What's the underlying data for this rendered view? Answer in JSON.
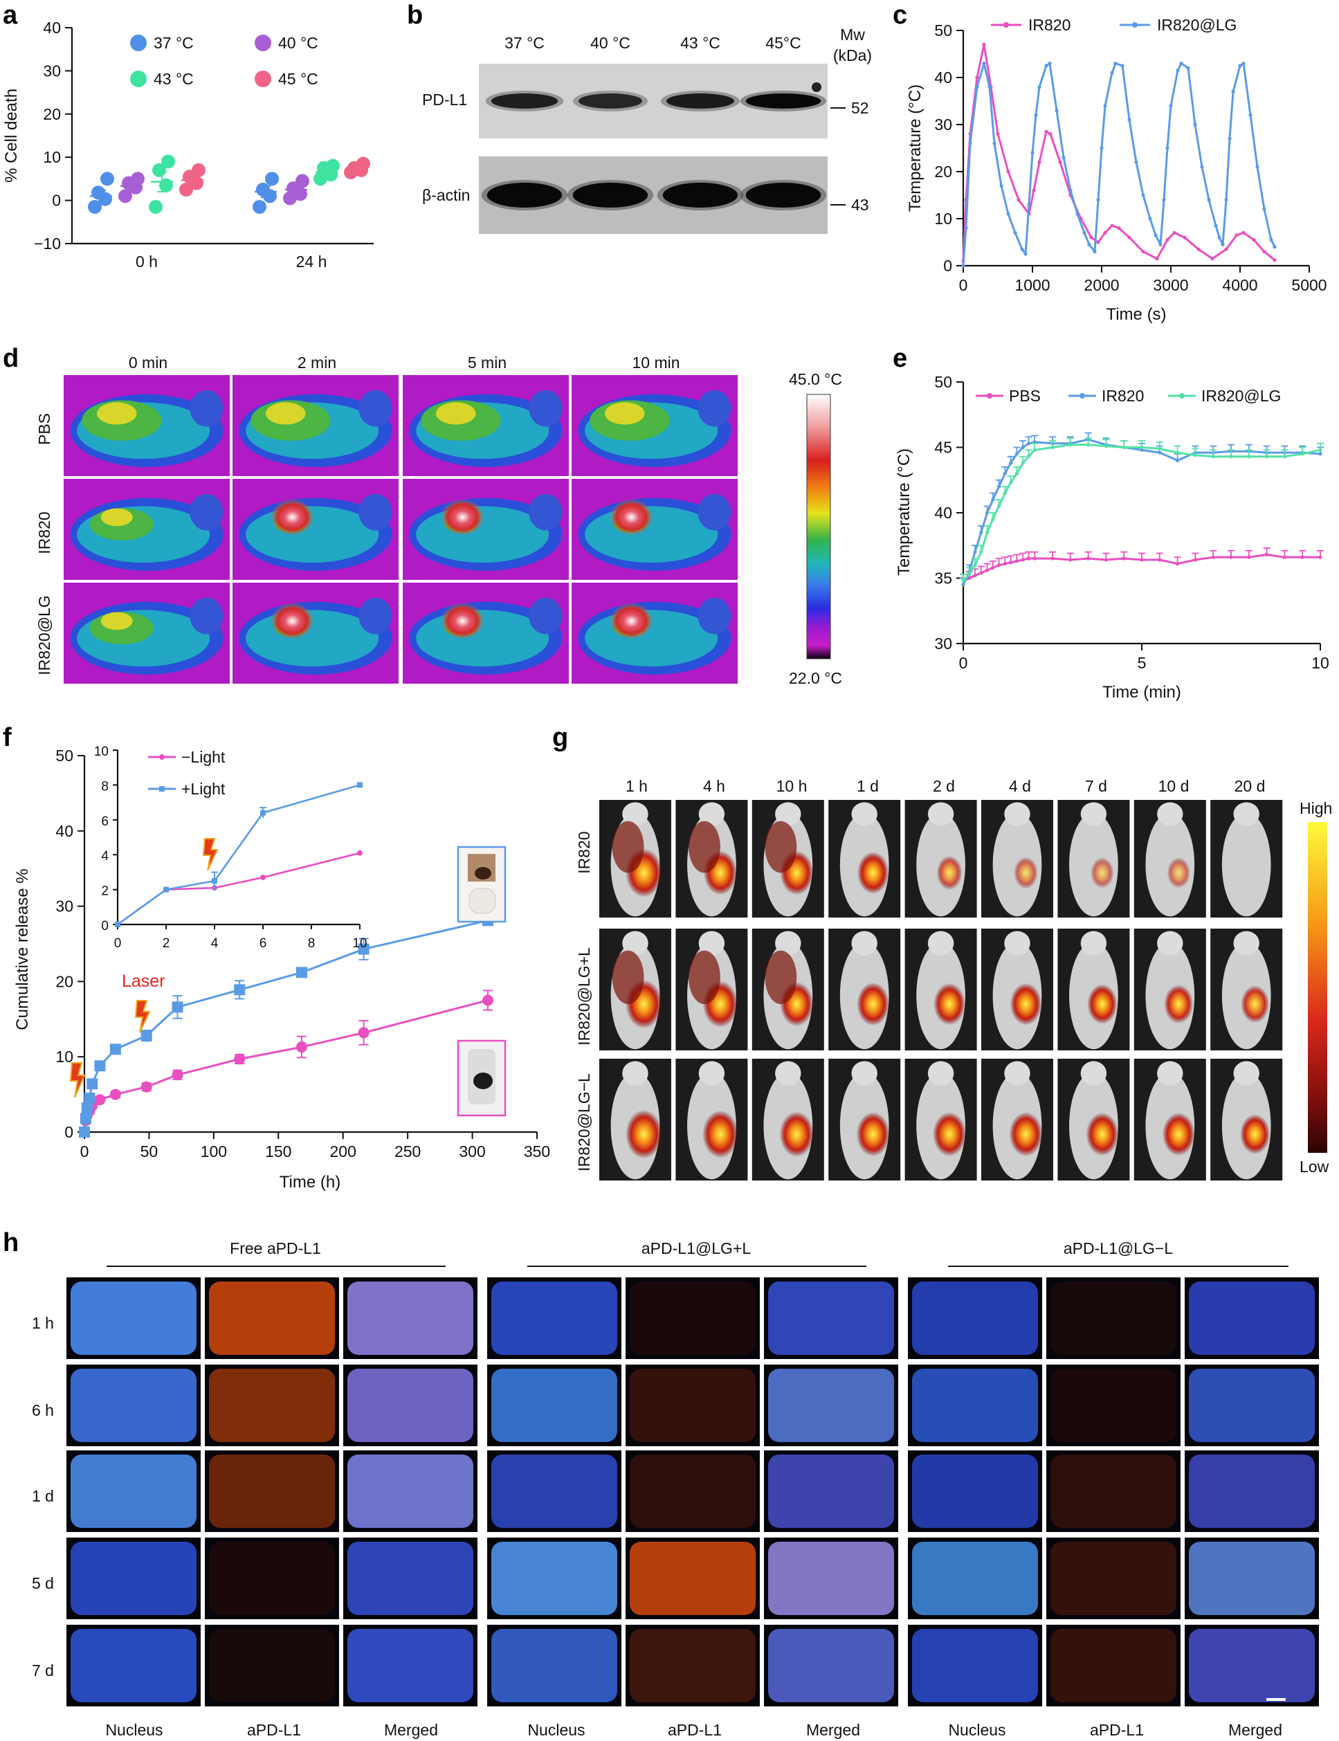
{
  "panel_labels": {
    "a": "a",
    "b": "b",
    "c": "c",
    "d": "d",
    "e": "e",
    "f": "f",
    "g": "g",
    "h": "h"
  },
  "colors": {
    "pink": "#e94fc0",
    "blue": "#5a9be6",
    "green": "#52e2a6",
    "c37": "#4f8fe8",
    "c40": "#a85fd6",
    "c43": "#3ee3a0",
    "c45": "#ef6486"
  },
  "chart_data": [
    {
      "id": "a",
      "type": "scatter",
      "title": "",
      "ylabel": "% Cell death",
      "xlabel": "",
      "ylim": [
        -10,
        40
      ],
      "yticks": [
        "−10",
        "0",
        "10",
        "20",
        "30",
        "40"
      ],
      "categories": [
        "0 h",
        "24 h"
      ],
      "legend": [
        "37 °C",
        "40 °C",
        "43 °C",
        "45 °C"
      ],
      "series": [
        {
          "name": "37 °C",
          "color": "#4f8fe8",
          "groups": [
            {
              "cat": 0,
              "points": [
                -1.5,
                0.3,
                1.8,
                5.0
              ],
              "mean": 1.0,
              "sem": 1.4
            },
            {
              "cat": 1,
              "points": [
                -1.5,
                1.0,
                2.5,
                5.0
              ],
              "mean": 2.0,
              "sem": 1.3
            }
          ]
        },
        {
          "name": "40 °C",
          "color": "#a85fd6",
          "groups": [
            {
              "cat": 0,
              "points": [
                1.0,
                3.0,
                4.0,
                5.0
              ],
              "mean": 3.3,
              "sem": 0.9
            },
            {
              "cat": 1,
              "points": [
                0.5,
                1.5,
                2.8,
                4.5
              ],
              "mean": 2.5,
              "sem": 0.9
            }
          ]
        },
        {
          "name": "43 °C",
          "color": "#3ee3a0",
          "groups": [
            {
              "cat": 0,
              "points": [
                -1.5,
                3.5,
                7.0,
                9.0
              ],
              "mean": 4.3,
              "sem": 2.3
            },
            {
              "cat": 1,
              "points": [
                5.0,
                6.0,
                7.5,
                8.0
              ],
              "mean": 6.5,
              "sem": 0.8
            }
          ]
        },
        {
          "name": "45 °C",
          "color": "#ef6486",
          "groups": [
            {
              "cat": 0,
              "points": [
                2.5,
                4.0,
                5.5,
                7.0
              ],
              "mean": 4.7,
              "sem": 1.0
            },
            {
              "cat": 1,
              "points": [
                6.5,
                7.0,
                7.5,
                8.5
              ],
              "mean": 7.3,
              "sem": 0.6
            }
          ]
        }
      ]
    },
    {
      "id": "c",
      "type": "line",
      "title": "",
      "xlabel": "Time (s)",
      "ylabel": "Temperature (°C)",
      "xlim": [
        0,
        5000
      ],
      "ylim": [
        0,
        50
      ],
      "xticks": [
        "0",
        "1000",
        "2000",
        "3000",
        "4000",
        "5000"
      ],
      "yticks": [
        "0",
        "10",
        "20",
        "30",
        "40",
        "50"
      ],
      "series": [
        {
          "name": "IR820",
          "color": "#e94fc0",
          "x": [
            0,
            40,
            100,
            200,
            300,
            400,
            500,
            650,
            800,
            950,
            1020,
            1100,
            1200,
            1260,
            1400,
            1550,
            1700,
            1850,
            1950,
            2050,
            2150,
            2250,
            2400,
            2600,
            2800,
            2950,
            3050,
            3200,
            3400,
            3600,
            3800,
            3950,
            4050,
            4200,
            4350,
            4500
          ],
          "y": [
            1,
            14,
            28,
            40,
            47,
            38,
            28,
            20,
            14,
            11,
            16,
            22,
            28.5,
            28,
            22,
            15,
            10,
            6,
            5,
            7,
            8.5,
            8,
            6,
            3,
            1.5,
            5.5,
            7,
            6,
            3.5,
            1.5,
            3.5,
            6.5,
            7,
            5.5,
            3,
            1.2
          ]
        },
        {
          "name": "IR820@LG",
          "color": "#5a9be6",
          "x": [
            0,
            40,
            100,
            200,
            300,
            380,
            450,
            550,
            650,
            750,
            850,
            900,
            950,
            1000,
            1050,
            1100,
            1200,
            1250,
            1350,
            1450,
            1550,
            1650,
            1750,
            1820,
            1900,
            1950,
            2000,
            2050,
            2150,
            2200,
            2300,
            2400,
            2500,
            2600,
            2700,
            2780,
            2850,
            2900,
            2950,
            3000,
            3100,
            3150,
            3250,
            3350,
            3450,
            3550,
            3650,
            3700,
            3750,
            3800,
            3850,
            3900,
            4000,
            4050,
            4150,
            4250,
            4350,
            4450,
            4500
          ],
          "y": [
            0,
            8,
            26,
            38,
            43,
            38,
            26,
            17,
            11,
            7,
            3.5,
            2.5,
            13,
            24,
            32,
            38,
            42.5,
            43,
            33,
            23,
            16,
            11,
            7,
            4.5,
            3,
            14,
            25,
            34,
            41,
            43,
            42.5,
            31,
            22,
            15,
            10,
            6.5,
            4.5,
            14,
            25,
            34,
            41.5,
            43,
            42,
            30,
            21,
            14,
            8.5,
            6,
            4.5,
            14,
            27,
            37,
            42.5,
            43,
            32,
            21,
            12,
            5.5,
            4
          ]
        }
      ]
    },
    {
      "id": "e",
      "type": "line",
      "title": "",
      "xlabel": "Time (min)",
      "ylabel": "Temperature (°C)",
      "xlim": [
        0,
        10
      ],
      "ylim": [
        30,
        50
      ],
      "xticks": [
        "0",
        "5",
        "10"
      ],
      "yticks": [
        "30",
        "35",
        "40",
        "45",
        "50"
      ],
      "series": [
        {
          "name": "PBS",
          "color": "#e94fc0",
          "x": [
            0,
            0.17,
            0.33,
            0.5,
            0.67,
            0.83,
            1.0,
            1.17,
            1.33,
            1.5,
            1.67,
            1.83,
            2.0,
            2.5,
            3.0,
            3.5,
            4.0,
            4.5,
            5.0,
            5.5,
            6.0,
            6.5,
            7.0,
            7.5,
            8.0,
            8.5,
            9.0,
            9.5,
            10.0
          ],
          "y": [
            34.8,
            35.0,
            35.2,
            35.4,
            35.6,
            35.8,
            36.0,
            36.1,
            36.2,
            36.3,
            36.4,
            36.5,
            36.5,
            36.5,
            36.4,
            36.5,
            36.4,
            36.5,
            36.4,
            36.4,
            36.1,
            36.4,
            36.6,
            36.6,
            36.6,
            36.8,
            36.6,
            36.6,
            36.6
          ],
          "err": 0.5
        },
        {
          "name": "IR820",
          "color": "#5a9be6",
          "x": [
            0,
            0.17,
            0.33,
            0.5,
            0.67,
            0.83,
            1.0,
            1.17,
            1.33,
            1.5,
            1.67,
            1.83,
            2.0,
            2.5,
            3.0,
            3.5,
            4.0,
            4.5,
            5.0,
            5.5,
            6.0,
            6.5,
            7.0,
            7.5,
            8.0,
            8.5,
            9.0,
            9.5,
            10.0
          ],
          "y": [
            34.5,
            35.5,
            37.0,
            38.5,
            40.0,
            41.0,
            42.0,
            43.0,
            43.8,
            44.5,
            45.0,
            45.3,
            45.4,
            45.3,
            45.3,
            45.6,
            45.2,
            45.0,
            44.8,
            44.6,
            44.0,
            44.6,
            44.6,
            44.7,
            44.7,
            44.6,
            44.6,
            44.6,
            44.5
          ],
          "err": 0.5
        },
        {
          "name": "IR820@LG",
          "color": "#52e2a6",
          "x": [
            0,
            0.17,
            0.33,
            0.5,
            0.67,
            0.83,
            1.0,
            1.17,
            1.33,
            1.5,
            1.67,
            1.83,
            2.0,
            2.5,
            3.0,
            3.5,
            4.0,
            4.5,
            5.0,
            5.5,
            6.0,
            6.5,
            7.0,
            7.5,
            8.0,
            8.5,
            9.0,
            9.5,
            10.0
          ],
          "y": [
            34.8,
            35.3,
            36.0,
            37.0,
            38.5,
            39.5,
            40.5,
            41.5,
            42.3,
            43.0,
            43.8,
            44.3,
            44.8,
            45.0,
            45.2,
            45.2,
            45.1,
            45.0,
            45.0,
            44.9,
            44.6,
            44.4,
            44.3,
            44.3,
            44.3,
            44.3,
            44.3,
            44.5,
            44.8
          ],
          "err": 0.5
        }
      ]
    },
    {
      "id": "f",
      "type": "line",
      "title": "",
      "xlabel": "Time (h)",
      "ylabel": "Cumulative release %",
      "xlim": [
        0,
        350
      ],
      "ylim": [
        0,
        50
      ],
      "xticks": [
        "0",
        "50",
        "100",
        "150",
        "200",
        "250",
        "300",
        "350"
      ],
      "yticks": [
        "0",
        "10",
        "20",
        "30",
        "40",
        "50"
      ],
      "series": [
        {
          "name": "−Light",
          "color": "#e94fc0",
          "marker": "circle",
          "x": [
            0,
            1,
            2,
            4,
            6,
            12,
            24,
            48,
            72,
            120,
            168,
            216,
            312
          ],
          "y": [
            0,
            1.5,
            2.2,
            2.8,
            3.5,
            4.3,
            5.0,
            6.0,
            7.6,
            9.7,
            11.3,
            13.2,
            17.5
          ],
          "err": [
            0,
            0.3,
            0.3,
            0.3,
            0.3,
            0.3,
            0.4,
            0.5,
            0.6,
            0.6,
            1.4,
            1.6,
            1.3
          ]
        },
        {
          "name": "+Light",
          "color": "#5a9be6",
          "marker": "square",
          "x": [
            0,
            1,
            2,
            4,
            6,
            12,
            24,
            48,
            72,
            120,
            168,
            216,
            312
          ],
          "y": [
            0,
            1.8,
            3.2,
            4.5,
            6.4,
            8.8,
            11.0,
            12.8,
            16.6,
            18.9,
            21.2,
            24.3,
            28.1
          ],
          "err": [
            0,
            0.3,
            0.3,
            0.4,
            0.5,
            0.6,
            0.6,
            0.7,
            1.5,
            1.2,
            0.6,
            1.4,
            0.5
          ]
        }
      ],
      "annotation": "Laser",
      "inset": {
        "xlim": [
          0,
          10
        ],
        "ylim": [
          0,
          10
        ],
        "xticks": [
          "0",
          "2",
          "4",
          "6",
          "8",
          "10"
        ],
        "yticks": [
          "0",
          "2",
          "4",
          "6",
          "8",
          "10"
        ],
        "legend": [
          "−Light",
          "+Light"
        ],
        "series": [
          {
            "name": "−Light",
            "color": "#e94fc0",
            "x": [
              0,
              2,
              4,
              6,
              10
            ],
            "y": [
              0,
              2.0,
              2.1,
              2.7,
              4.1
            ]
          },
          {
            "name": "+Light",
            "color": "#5a9be6",
            "x": [
              0,
              2,
              4,
              6,
              10
            ],
            "y": [
              0,
              2.0,
              2.5,
              6.4,
              8.0
            ],
            "err": [
              0,
              0,
              0.5,
              0.3,
              0
            ]
          }
        ]
      }
    }
  ],
  "panel_b": {
    "columns": [
      "37 °C",
      "40 °C",
      "43 °C",
      "45°C"
    ],
    "mw_header_1": "Mw",
    "mw_header_2": "(kDa)",
    "rows": [
      {
        "label": "PD-L1",
        "mw": "52",
        "intensity": [
          0.55,
          0.4,
          0.6,
          0.95
        ]
      },
      {
        "label": "β-actin",
        "mw": "43",
        "intensity": [
          0.95,
          0.95,
          0.95,
          0.95
        ]
      }
    ]
  },
  "panel_d": {
    "columns": [
      "0 min",
      "2 min",
      "5 min",
      "10 min"
    ],
    "rows": [
      "PBS",
      "IR820",
      "IR820@LG"
    ],
    "scale_max": "45.0 °C",
    "scale_min": "22.0 °C"
  },
  "panel_g": {
    "columns": [
      "1 h",
      "4 h",
      "10 h",
      "1 d",
      "2 d",
      "4 d",
      "7 d",
      "10 d",
      "20 d"
    ],
    "rows": [
      "IR820",
      "IR820@LG+L",
      "IR820@LG−L"
    ],
    "scale_high": "High",
    "scale_low": "Low"
  },
  "panel_h": {
    "groups": [
      "Free aPD-L1",
      "aPD-L1@LG+L",
      "aPD-L1@LG−L"
    ],
    "rows": [
      "1 h",
      "6 h",
      "1 d",
      "5 d",
      "7 d"
    ],
    "columns": [
      "Nucleus",
      "aPD-L1",
      "Merged"
    ]
  }
}
